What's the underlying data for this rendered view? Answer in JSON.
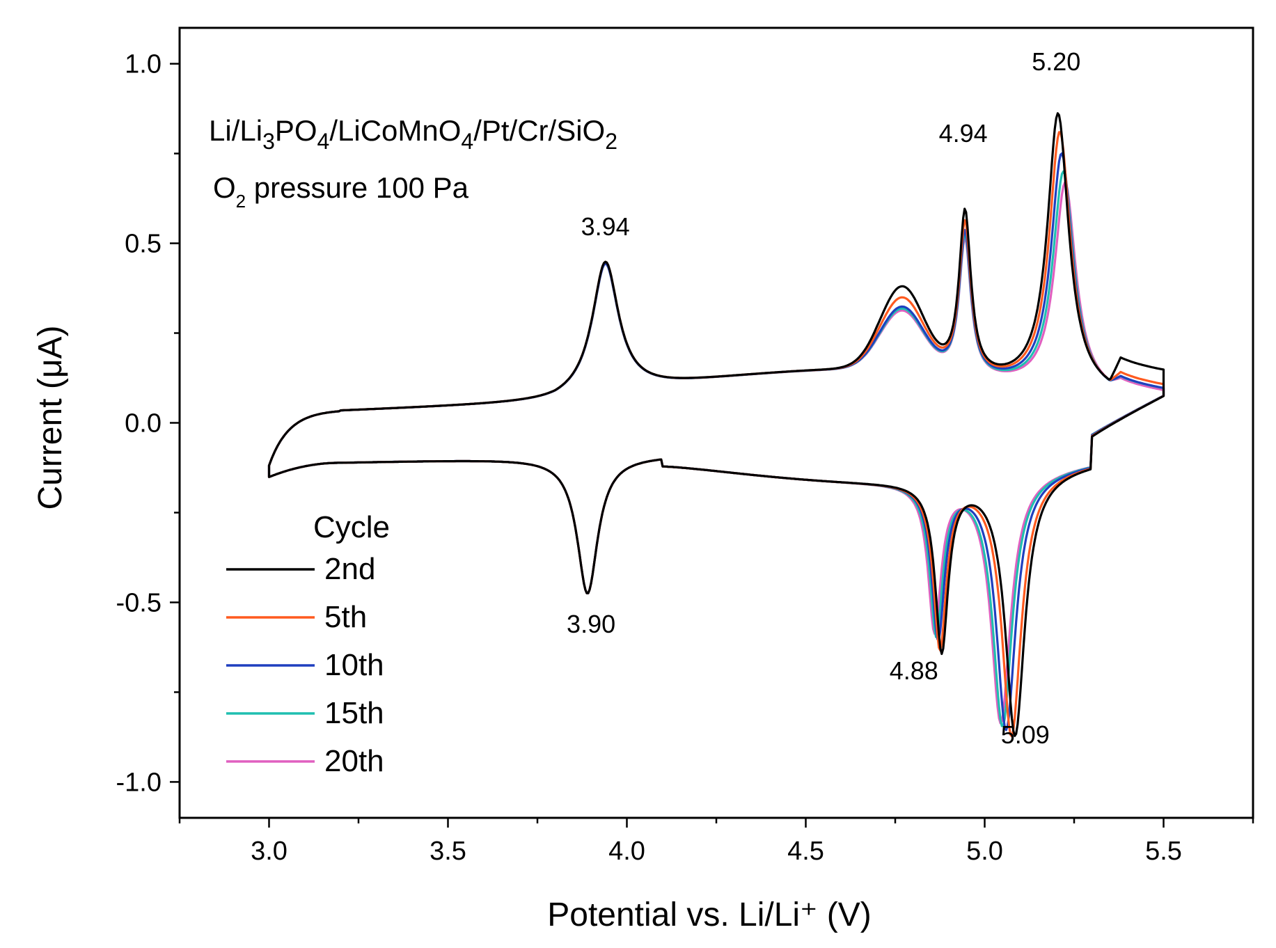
{
  "chart_data": {
    "type": "line",
    "title": "",
    "xlabel": "Potential vs. Li/Li⁺ (V)",
    "ylabel": "Current (μA)",
    "xlim": [
      2.75,
      5.75
    ],
    "ylim": [
      -1.1,
      1.1
    ],
    "x_ticks": [
      "3.0",
      "3.5",
      "4.0",
      "4.5",
      "5.0",
      "5.5"
    ],
    "y_ticks": [
      "1.0",
      "0.5",
      "0.0",
      "-0.5",
      "-1.0"
    ],
    "grid": false,
    "cell_label": {
      "p1": "Li/Li",
      "s1": "3",
      "p2": "PO",
      "s2": "4",
      "p3": "/LiCoMnO",
      "s3": "4",
      "p4": "/Pt/Cr/SiO",
      "s4": "2"
    },
    "pressure_label": {
      "main": "O",
      "sub": "2",
      "rest": " pressure 100 Pa"
    },
    "annotations": [
      {
        "text": "3.94",
        "x": 3.94,
        "y": 0.46
      },
      {
        "text": "4.94",
        "x": 4.94,
        "y": 0.72
      },
      {
        "text": "5.20",
        "x": 5.2,
        "y": 0.92
      },
      {
        "text": "3.90",
        "x": 3.9,
        "y": -0.48
      },
      {
        "text": "4.88",
        "x": 4.88,
        "y": -0.59
      },
      {
        "text": "5.09",
        "x": 5.09,
        "y": -0.78
      }
    ],
    "legend": {
      "title": "Cycle",
      "position": "bottom-left"
    },
    "series": [
      {
        "name": "2nd",
        "color": "#000000",
        "anodic_peaks": [
          [
            3.94,
            0.46
          ],
          [
            4.77,
            0.39
          ],
          [
            4.945,
            0.72
          ],
          [
            5.205,
            0.92
          ]
        ],
        "cathodic_peaks": [
          [
            3.89,
            -0.48
          ],
          [
            4.88,
            -0.59
          ],
          [
            5.085,
            -0.78
          ]
        ],
        "end_current": 0.14
      },
      {
        "name": "5th",
        "color": "#ff5a1f",
        "anodic_peaks": [
          [
            3.94,
            0.46
          ],
          [
            4.77,
            0.36
          ],
          [
            4.945,
            0.69
          ],
          [
            5.21,
            0.87
          ]
        ],
        "cathodic_peaks": [
          [
            3.89,
            -0.48
          ],
          [
            4.875,
            -0.58
          ],
          [
            5.075,
            -0.78
          ]
        ],
        "end_current": 0.1
      },
      {
        "name": "10th",
        "color": "#1f3fbf",
        "anodic_peaks": [
          [
            3.94,
            0.455
          ],
          [
            4.77,
            0.335
          ],
          [
            4.945,
            0.665
          ],
          [
            5.215,
            0.81
          ]
        ],
        "cathodic_peaks": [
          [
            3.89,
            -0.48
          ],
          [
            4.87,
            -0.55
          ],
          [
            5.06,
            -0.76
          ]
        ],
        "end_current": 0.09
      },
      {
        "name": "15th",
        "color": "#1fbfb0",
        "anodic_peaks": [
          [
            3.94,
            0.455
          ],
          [
            4.77,
            0.33
          ],
          [
            4.945,
            0.655
          ],
          [
            5.22,
            0.76
          ]
        ],
        "cathodic_peaks": [
          [
            3.89,
            -0.48
          ],
          [
            4.865,
            -0.54
          ],
          [
            5.05,
            -0.75
          ]
        ],
        "end_current": 0.09
      },
      {
        "name": "20th",
        "color": "#e060c0",
        "anodic_peaks": [
          [
            3.94,
            0.455
          ],
          [
            4.77,
            0.325
          ],
          [
            4.945,
            0.645
          ],
          [
            5.225,
            0.73
          ]
        ],
        "cathodic_peaks": [
          [
            3.89,
            -0.48
          ],
          [
            4.86,
            -0.53
          ],
          [
            5.045,
            -0.74
          ]
        ],
        "end_current": 0.085
      }
    ]
  }
}
